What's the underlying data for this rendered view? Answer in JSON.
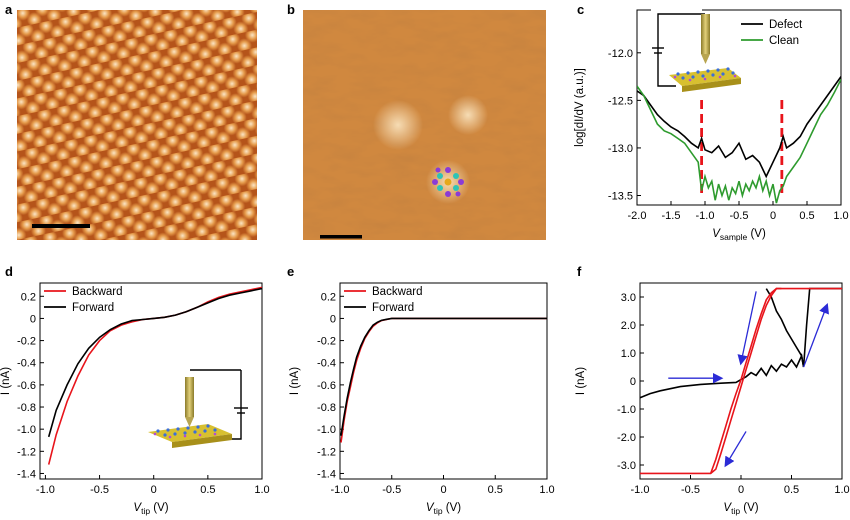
{
  "panels": {
    "a": {
      "letter": "a"
    },
    "b": {
      "letter": "b"
    }
  },
  "colors": {
    "red": "#e8141b",
    "black": "#000000",
    "green": "#2e9b2e",
    "blue": "#2b2bd6",
    "stm_dark": "#7a2c06",
    "stm_bright": "#f6dcb4"
  },
  "chart_data": [
    {
      "panel": "c",
      "type": "line",
      "xlabel_main": "V",
      "xlabel_sub": "sample",
      "xlabel_unit": " (V)",
      "ylabel": "log[dI/dV (a.u.)]",
      "xlim": [
        -2.0,
        1.0
      ],
      "ylim": [
        -13.6,
        -11.55
      ],
      "xticks": [
        "-2.0",
        "-1.5",
        "-1.0",
        "-0.5",
        "0",
        "0.5",
        "1.0"
      ],
      "xtick_values": [
        -2.0,
        -1.5,
        -1.0,
        -0.5,
        0,
        0.5,
        1.0
      ],
      "yticks": [
        "-12.0",
        "-12.5",
        "-13.0",
        "-13.5"
      ],
      "ytick_values": [
        -12.0,
        -12.5,
        -13.0,
        -13.5
      ],
      "legend": [
        "Defect",
        "Clean"
      ],
      "series": [
        {
          "name": "Defect",
          "color": "black",
          "x": [
            -2.0,
            -1.9,
            -1.8,
            -1.7,
            -1.6,
            -1.5,
            -1.4,
            -1.3,
            -1.2,
            -1.1,
            -1.05,
            -1.0,
            -0.9,
            -0.8,
            -0.7,
            -0.6,
            -0.5,
            -0.4,
            -0.3,
            -0.2,
            -0.1,
            0.0,
            0.1,
            0.15,
            0.2,
            0.3,
            0.4,
            0.5,
            0.6,
            0.7,
            0.8,
            0.9,
            1.0
          ],
          "y": [
            -12.4,
            -12.45,
            -12.55,
            -12.65,
            -12.72,
            -12.78,
            -12.82,
            -12.88,
            -12.95,
            -13.0,
            -12.9,
            -13.02,
            -13.05,
            -12.98,
            -13.1,
            -13.05,
            -12.95,
            -13.12,
            -13.08,
            -13.15,
            -13.3,
            -13.15,
            -13.0,
            -12.88,
            -13.0,
            -12.95,
            -12.88,
            -12.75,
            -12.65,
            -12.55,
            -12.45,
            -12.35,
            -12.25
          ]
        },
        {
          "name": "Clean",
          "color": "green",
          "x": [
            -2.0,
            -1.9,
            -1.8,
            -1.7,
            -1.6,
            -1.5,
            -1.4,
            -1.3,
            -1.2,
            -1.1,
            -1.05,
            -1.0,
            -0.95,
            -0.9,
            -0.85,
            -0.8,
            -0.75,
            -0.7,
            -0.65,
            -0.6,
            -0.55,
            -0.5,
            -0.45,
            -0.4,
            -0.35,
            -0.3,
            -0.25,
            -0.2,
            -0.15,
            -0.1,
            -0.05,
            0.0,
            0.05,
            0.1,
            0.15,
            0.2,
            0.3,
            0.4,
            0.5,
            0.6,
            0.7,
            0.8,
            0.9,
            1.0
          ],
          "y": [
            -12.35,
            -12.45,
            -12.6,
            -12.75,
            -12.82,
            -12.85,
            -12.9,
            -12.95,
            -13.05,
            -13.15,
            -13.45,
            -13.3,
            -13.42,
            -13.35,
            -13.55,
            -13.38,
            -13.5,
            -13.4,
            -13.55,
            -13.42,
            -13.48,
            -13.35,
            -13.5,
            -13.38,
            -13.45,
            -13.35,
            -13.42,
            -13.3,
            -13.45,
            -13.35,
            -13.5,
            -13.38,
            -13.58,
            -13.45,
            -13.4,
            -13.3,
            -13.2,
            -13.1,
            -12.95,
            -12.8,
            -12.65,
            -12.55,
            -12.42,
            -12.28
          ]
        }
      ],
      "vlines": [
        -1.05,
        0.13
      ]
    },
    {
      "panel": "d",
      "type": "line",
      "xlabel_main": "V",
      "xlabel_sub": "tip",
      "xlabel_unit": " (V)",
      "ylabel": "I (nA)",
      "xlim": [
        -1.05,
        1.0
      ],
      "ylim": [
        -1.45,
        0.32
      ],
      "xticks": [
        "-1.0",
        "-0.5",
        "0",
        "0.5",
        "1.0"
      ],
      "xtick_values": [
        -1.0,
        -0.5,
        0,
        0.5,
        1.0
      ],
      "yticks": [
        "0.2",
        "0",
        "-0.2",
        "-0.4",
        "-0.6",
        "-0.8",
        "-1.0",
        "-1.2",
        "-1.4"
      ],
      "ytick_values": [
        0.2,
        0,
        -0.2,
        -0.4,
        -0.6,
        -0.8,
        -1.0,
        -1.2,
        -1.4
      ],
      "legend": [
        "Backward",
        "Forward"
      ],
      "series": [
        {
          "name": "Backward",
          "color": "red",
          "x": [
            -0.97,
            -0.9,
            -0.8,
            -0.7,
            -0.6,
            -0.5,
            -0.4,
            -0.3,
            -0.2,
            -0.1,
            0.0,
            0.1,
            0.2,
            0.3,
            0.4,
            0.5,
            0.6,
            0.7,
            0.8,
            0.9,
            1.0
          ],
          "y": [
            -1.32,
            -1.05,
            -0.75,
            -0.52,
            -0.33,
            -0.2,
            -0.11,
            -0.06,
            -0.03,
            -0.01,
            0.0,
            0.01,
            0.03,
            0.06,
            0.1,
            0.15,
            0.19,
            0.22,
            0.24,
            0.26,
            0.28
          ]
        },
        {
          "name": "Forward",
          "color": "black",
          "x": [
            -0.97,
            -0.9,
            -0.8,
            -0.7,
            -0.6,
            -0.5,
            -0.4,
            -0.3,
            -0.2,
            -0.1,
            0.0,
            0.1,
            0.2,
            0.3,
            0.4,
            0.5,
            0.6,
            0.7,
            0.8,
            0.9,
            1.0
          ],
          "y": [
            -1.07,
            -0.83,
            -0.6,
            -0.41,
            -0.27,
            -0.17,
            -0.1,
            -0.05,
            -0.02,
            -0.01,
            0.0,
            0.01,
            0.03,
            0.06,
            0.1,
            0.14,
            0.18,
            0.21,
            0.23,
            0.25,
            0.27
          ]
        }
      ]
    },
    {
      "panel": "e",
      "type": "line",
      "xlabel_main": "V",
      "xlabel_sub": "tip",
      "xlabel_unit": " (V)",
      "ylabel": "I (nA)",
      "xlim": [
        -1.0,
        1.0
      ],
      "ylim": [
        -1.45,
        0.32
      ],
      "xticks": [
        "-1.0",
        "-0.5",
        "0",
        "0.5",
        "1.0"
      ],
      "xtick_values": [
        -1.0,
        -0.5,
        0,
        0.5,
        1.0
      ],
      "yticks": [
        "0.2",
        "0",
        "-0.2",
        "-0.4",
        "-0.6",
        "-0.8",
        "-1.0",
        "-1.2",
        "-1.4"
      ],
      "ytick_values": [
        0.2,
        0,
        -0.2,
        -0.4,
        -0.6,
        -0.8,
        -1.0,
        -1.2,
        -1.4
      ],
      "legend": [
        "Backward",
        "Forward"
      ],
      "series": [
        {
          "name": "Backward",
          "color": "red",
          "x": [
            -0.99,
            -0.96,
            -0.93,
            -0.9,
            -0.87,
            -0.84,
            -0.8,
            -0.76,
            -0.72,
            -0.68,
            -0.64,
            -0.6,
            -0.55,
            -0.5,
            -0.4,
            -0.2,
            0.0,
            0.5,
            1.0
          ],
          "y": [
            -1.12,
            -0.92,
            -0.75,
            -0.62,
            -0.49,
            -0.38,
            -0.27,
            -0.18,
            -0.12,
            -0.07,
            -0.04,
            -0.02,
            -0.01,
            0.0,
            0.0,
            0.0,
            0.0,
            0.0,
            0.0
          ]
        },
        {
          "name": "Forward",
          "color": "black",
          "x": [
            -0.99,
            -0.96,
            -0.93,
            -0.9,
            -0.87,
            -0.84,
            -0.8,
            -0.76,
            -0.72,
            -0.68,
            -0.64,
            -0.6,
            -0.55,
            -0.5,
            -0.4,
            -0.2,
            0.0,
            0.5,
            1.0
          ],
          "y": [
            -1.06,
            -0.88,
            -0.72,
            -0.58,
            -0.46,
            -0.35,
            -0.25,
            -0.17,
            -0.11,
            -0.06,
            -0.035,
            -0.018,
            -0.008,
            0.0,
            0.0,
            0.0,
            0.0,
            0.0,
            0.0
          ]
        }
      ]
    },
    {
      "panel": "f",
      "type": "line",
      "xlabel_main": "V",
      "xlabel_sub": "tip",
      "xlabel_unit": " (V)",
      "ylabel": "I (nA)",
      "xlim": [
        -1.0,
        1.0
      ],
      "ylim": [
        -3.5,
        3.5
      ],
      "xticks": [
        "-1.0",
        "-0.5",
        "0",
        "0.5",
        "1.0"
      ],
      "xtick_values": [
        -1.0,
        -0.5,
        0,
        0.5,
        1.0
      ],
      "yticks": [
        "3.0",
        "2.0",
        "1.0",
        "0",
        "-1.0",
        "-2.0",
        "-3.0"
      ],
      "ytick_values": [
        3.0,
        2.0,
        1.0,
        0,
        -1.0,
        -2.0,
        -3.0
      ],
      "series": [
        {
          "name": "",
          "color": "black",
          "x": [
            -1.0,
            -0.9,
            -0.8,
            -0.6,
            -0.4,
            -0.2,
            -0.05,
            0.0,
            0.05,
            0.1,
            0.15,
            0.2,
            0.25,
            0.3,
            0.35,
            0.4,
            0.45,
            0.5,
            0.55,
            0.6,
            0.62,
            0.65,
            0.68,
            1.0
          ],
          "y": [
            -0.6,
            -0.45,
            -0.35,
            -0.2,
            -0.12,
            -0.08,
            -0.05,
            0.05,
            0.15,
            0.3,
            0.2,
            0.45,
            0.2,
            0.55,
            0.35,
            0.6,
            0.5,
            0.75,
            0.5,
            0.9,
            0.5,
            2.0,
            3.3,
            3.3
          ]
        },
        {
          "name": "",
          "color": "black",
          "x": [
            0.25,
            0.3,
            0.35,
            0.4,
            0.45,
            0.5,
            0.55,
            0.6,
            0.62
          ],
          "y": [
            3.3,
            3.0,
            2.5,
            2.2,
            1.8,
            1.5,
            1.2,
            0.9,
            0.5
          ]
        },
        {
          "name": "",
          "color": "red",
          "x": [
            -1.0,
            -0.7,
            -0.5,
            -0.4,
            -0.3,
            -0.25,
            -0.2,
            -0.15,
            -0.1,
            -0.05,
            0.0,
            0.05,
            0.1,
            0.15,
            0.2,
            0.25,
            0.3,
            0.35,
            0.4,
            0.45,
            1.0
          ],
          "y": [
            -3.3,
            -3.3,
            -3.3,
            -3.3,
            -3.3,
            -3.15,
            -2.6,
            -2.0,
            -1.4,
            -0.8,
            -0.2,
            0.4,
            1.0,
            1.6,
            2.2,
            2.7,
            3.05,
            3.3,
            3.3,
            3.3,
            3.3
          ]
        },
        {
          "name": "",
          "color": "red",
          "x": [
            -0.3,
            -0.25,
            -0.2,
            -0.15,
            -0.1,
            -0.05,
            0.0,
            0.05,
            0.1,
            0.15,
            0.2,
            0.25,
            0.3,
            0.35,
            0.4
          ],
          "y": [
            -3.3,
            -2.8,
            -2.2,
            -1.6,
            -1.0,
            -0.45,
            0.05,
            0.65,
            1.25,
            1.85,
            2.4,
            2.9,
            3.15,
            3.3,
            3.3
          ]
        }
      ],
      "arrows": [
        {
          "from": [
            -0.72,
            0.1
          ],
          "to": [
            -0.2,
            0.1
          ]
        },
        {
          "from": [
            0.15,
            3.2
          ],
          "to": [
            0.0,
            0.65
          ]
        },
        {
          "from": [
            0.62,
            0.5
          ],
          "to": [
            0.85,
            2.7
          ]
        },
        {
          "from": [
            0.05,
            -1.8
          ],
          "to": [
            -0.15,
            -3.0
          ]
        }
      ]
    }
  ]
}
